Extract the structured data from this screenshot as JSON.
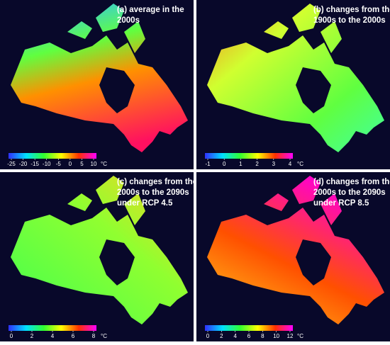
{
  "panels": [
    {
      "title_lines": [
        "(a)  average in the",
        "2000s"
      ],
      "colorbar": {
        "ticks": [
          -25,
          -20,
          -15,
          -10,
          -5,
          0,
          5,
          10
        ],
        "unit": "°C"
      }
    },
    {
      "title_lines": [
        "(b) changes from the",
        "1900s to the 2000s"
      ],
      "colorbar": {
        "ticks": [
          -1,
          0,
          1,
          2,
          3,
          4
        ],
        "unit": "°C"
      }
    },
    {
      "title_lines": [
        "(c) changes from the",
        "2000s to the 2090s",
        "under RCP 4.5"
      ],
      "colorbar": {
        "ticks": [
          0,
          2,
          4,
          6,
          8
        ],
        "unit": "°C"
      }
    },
    {
      "title_lines": [
        "(d) changes from the",
        "2000s to the 2090s",
        "under RCP 8.5"
      ],
      "colorbar": {
        "ticks": [
          0,
          2,
          4,
          6,
          8,
          10,
          12
        ],
        "unit": "°C"
      }
    }
  ]
}
